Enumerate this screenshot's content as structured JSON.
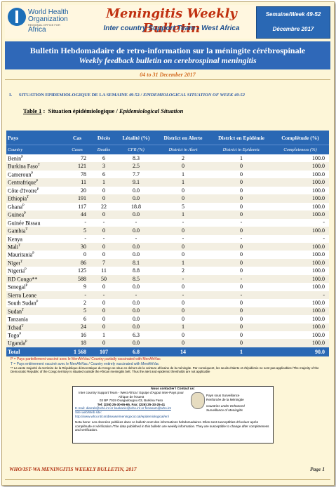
{
  "header": {
    "who_line1": "World Health",
    "who_line2": "Organization",
    "who_line3": "Africa",
    "who_small": "REGIONAL OFFICE FOR",
    "title": "Meningitis Weekly Bulletin",
    "subtitle": "Inter country Support Team - West Africa",
    "week_label": "Semaine/Week 49-52",
    "month_label": "Décembre 2017"
  },
  "banner": {
    "line1": "Bulletin Hebdomadaire de retro-information sur la méningite cérébrospinale",
    "line2": "Weekly feedback bulletin on cerebrospinal meningitis",
    "date": "04 to 31 December 2017"
  },
  "section": {
    "number": "I.",
    "title_fr": "SITUATION EPIDEMIOLOGIQUE DE LA SEMAINE 49-52",
    "title_en": "EPIDEMIOLOGICAL SITUATION OF WEEK 49-52"
  },
  "table_title": {
    "label": "Table  1",
    "fr": "Situation épidémiologique",
    "en": "Epidemiological Situation"
  },
  "table": {
    "headers_fr": [
      "Pays",
      "Cas",
      "Décès",
      "Létalité (%)",
      "District en Alerte",
      "District en Epidémie",
      "Complétude (%)"
    ],
    "headers_en": [
      "Country",
      "Cases",
      "Deaths",
      "CFR (%)",
      "District in Alert",
      "District in Epidemic",
      "Completeness (%)"
    ],
    "rows": [
      {
        "country": "Benin",
        "sup": "P",
        "cases": "72",
        "deaths": "6",
        "cfr": "8.3",
        "alert": "2",
        "epid": "1",
        "comp": "100.0"
      },
      {
        "country": "Burkina Faso",
        "sup": "T",
        "cases": "121",
        "deaths": "3",
        "cfr": "2.5",
        "alert": "0",
        "epid": "0",
        "comp": "100.0"
      },
      {
        "country": "Cameroun",
        "sup": "P",
        "cases": "78",
        "deaths": "6",
        "cfr": "7.7",
        "alert": "1",
        "epid": "0",
        "comp": "100.0"
      },
      {
        "country": "Centrafrique",
        "sup": "P",
        "cases": "11",
        "deaths": "1",
        "cfr": "9.1",
        "alert": "1",
        "epid": "0",
        "comp": "100.0"
      },
      {
        "country": "Côte d'Ivoire",
        "sup": "P",
        "cases": "20",
        "deaths": "0",
        "cfr": "0.0",
        "alert": "0",
        "epid": "0",
        "comp": "100.0"
      },
      {
        "country": "Ethiopia",
        "sup": "T",
        "cases": "191",
        "deaths": "0",
        "cfr": "0.0",
        "alert": "0",
        "epid": "0",
        "comp": "100.0"
      },
      {
        "country": "Ghana",
        "sup": "P",
        "cases": "117",
        "deaths": "22",
        "cfr": "18.8",
        "alert": "5",
        "epid": "0",
        "comp": "100.0"
      },
      {
        "country": "Guinea",
        "sup": "P",
        "cases": "44",
        "deaths": "0",
        "cfr": "0.0",
        "alert": "1",
        "epid": "0",
        "comp": "100.0"
      },
      {
        "country": "Guinée Bissau",
        "sup": "",
        "cases": "-",
        "deaths": "-",
        "cfr": "-",
        "alert": "-",
        "epid": "-",
        "comp": "-"
      },
      {
        "country": "Gambia",
        "sup": "T",
        "cases": "5",
        "deaths": "0",
        "cfr": "0.0",
        "alert": "0",
        "epid": "0",
        "comp": "100.0"
      },
      {
        "country": "Kenya",
        "sup": "",
        "cases": "-",
        "deaths": "-",
        "cfr": "-",
        "alert": "-",
        "epid": "-",
        "comp": "-"
      },
      {
        "country": "Mali",
        "sup": "T",
        "cases": "30",
        "deaths": "0",
        "cfr": "0.0",
        "alert": "0",
        "epid": "0",
        "comp": "100.0"
      },
      {
        "country": "Mauritania",
        "sup": "P",
        "cases": "0",
        "deaths": "0",
        "cfr": "0.0",
        "alert": "0",
        "epid": "0",
        "comp": "100.0"
      },
      {
        "country": "Niger",
        "sup": "T",
        "cases": "86",
        "deaths": "7",
        "cfr": "8.1",
        "alert": "1",
        "epid": "0",
        "comp": "100.0"
      },
      {
        "country": "Nigeria",
        "sup": "P",
        "cases": "125",
        "deaths": "11",
        "cfr": "8.8",
        "alert": "2",
        "epid": "0",
        "comp": "100.0"
      },
      {
        "country": "RD Congo**",
        "sup": "",
        "cases": "588",
        "deaths": "50",
        "cfr": "8.5",
        "alert": "-",
        "epid": "-",
        "comp": "100.0"
      },
      {
        "country": "Senegal",
        "sup": "P",
        "cases": "9",
        "deaths": "0",
        "cfr": "0.0",
        "alert": "0",
        "epid": "0",
        "comp": "100.0"
      },
      {
        "country": "Sierra Leone",
        "sup": "",
        "cases": "-",
        "deaths": "-",
        "cfr": "-",
        "alert": "-",
        "epid": "-",
        "comp": "-"
      },
      {
        "country": "South Sudan",
        "sup": "P",
        "cases": "2",
        "deaths": "0",
        "cfr": "0.0",
        "alert": "0",
        "epid": "0",
        "comp": "100.0"
      },
      {
        "country": "Sudan",
        "sup": "T",
        "cases": "5",
        "deaths": "0",
        "cfr": "0.0",
        "alert": "0",
        "epid": "0",
        "comp": "100.0"
      },
      {
        "country": "Tanzania",
        "sup": "",
        "cases": "6",
        "deaths": "0",
        "cfr": "0.0",
        "alert": "0",
        "epid": "0",
        "comp": "100.0"
      },
      {
        "country": "Tchad",
        "sup": "T",
        "cases": "24",
        "deaths": "0",
        "cfr": "0.0",
        "alert": "1",
        "epid": "0",
        "comp": "100.0"
      },
      {
        "country": "Togo",
        "sup": "P",
        "cases": "16",
        "deaths": "1",
        "cfr": "6.3",
        "alert": "0",
        "epid": "0",
        "comp": "100.0"
      },
      {
        "country": "Uganda",
        "sup": "P",
        "cases": "18",
        "deaths": "0",
        "cfr": "0.0",
        "alert": "0",
        "epid": "0",
        "comp": "100.0"
      }
    ],
    "total": {
      "country": "Total",
      "cases": "1 568",
      "deaths": "107",
      "cfr": "6.8",
      "alert": "14",
      "epid": "1",
      "comp": "90.0"
    }
  },
  "notes": {
    "p": "P = Pays partiellement vacciné avec le MenAfriVac/ Country partially  vaccinated with MenAfriVac",
    "t": "T = Pays entièrement vacciné avec le MenAfriVac / Country entirely  vaccinated with MenAfriVac",
    "star": "**  La vaste majorité du territoire de la République démocratique du Congo se situe en dehors de la ceinture africaine de la méningite. Par conséquent, les seuils d'alerte et d'épidémie ne sont pas applicables /The majority of the Democratic Republic of the Congo territory is situated outside the African meningitis belt. Thus the alert and epidemic thresholds are not applicable"
  },
  "contact": {
    "title": "Nous contacter / Contact us:",
    "line1": "Inter country Support Team - West Africa / Equipe d'Appui  Inter-Pays pour Afrique de l'Ouest",
    "line2": "03 BP 7019 Ouagadougou 03,  Burkina Faso",
    "line3": "Tel: (226) 25-30-65-65, Fax: (226) 25-33-25-41",
    "email": "E-mail: diarrab@who.int  or  kaokanic@who.int  or  fenanam@who.int",
    "site": "Site web/Web site:  http://www.who.int/csr/disease/meningococcal/epidemiological/en/",
    "right1": "Pays sous Surveillance",
    "right2": "Renforcée de la Méningite",
    "right3": "Countries under Enhanced",
    "right4": "Surveillance of Meningitis",
    "bottom": "Nota bene: Les données publiées dans ce bulletin sont des informations hebdomadaires. Elles sont susceptibles d'évoluer après complétude et vérification /The data published in this bulletin are weekly information. They are susceptible to change after completeness and verification."
  },
  "footer": {
    "text": "WHO/IST-WA MENINGITIS WEEKLY BULLETIN, 2017",
    "page": "Page 1"
  }
}
